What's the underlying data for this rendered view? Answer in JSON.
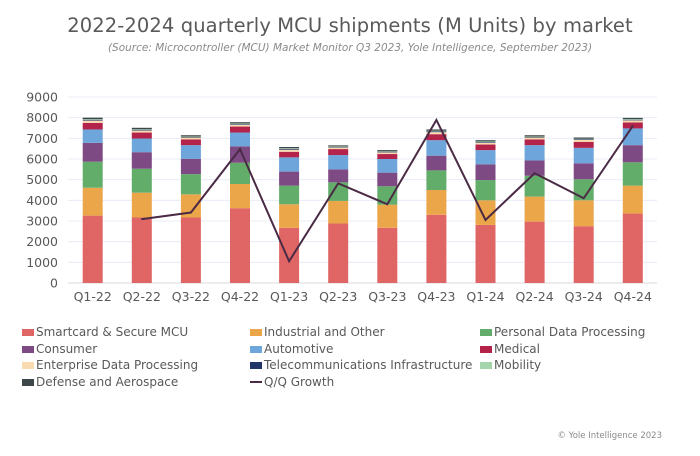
{
  "chart_data": {
    "type": "bar",
    "stacked": true,
    "title": "2022-2024 quarterly MCU shipments (M Units) by market",
    "subtitle": "(Source: Microcontroller (MCU) Market Monitor Q3 2023, Yole Intelligence, September 2023)",
    "xlabel": "",
    "ylabel": "",
    "ylim": [
      0,
      9000
    ],
    "yticks": [
      "0",
      "1000",
      "2000",
      "3000",
      "4000",
      "5000",
      "6000",
      "7000",
      "8000",
      "9000"
    ],
    "ytick_values": [
      0,
      1000,
      2000,
      3000,
      4000,
      5000,
      6000,
      7000,
      8000,
      9000
    ],
    "grid": true,
    "legend_position": "bottom",
    "categories": [
      "Q1-22",
      "Q2-22",
      "Q3-22",
      "Q4-22",
      "Q1-23",
      "Q2-23",
      "Q3-23",
      "Q4-23",
      "Q1-24",
      "Q2-24",
      "Q3-24",
      "Q4-24"
    ],
    "series": [
      {
        "name": "Smartcard & Secure MCU",
        "color": "#e06666",
        "values": [
          3260,
          3170,
          3170,
          3620,
          2670,
          2880,
          2670,
          3300,
          2810,
          2970,
          2750,
          3360
        ]
      },
      {
        "name": "Industrial and Other",
        "color": "#eca64a",
        "values": [
          1350,
          1200,
          1120,
          1170,
          1140,
          1090,
          1120,
          1200,
          1190,
          1210,
          1250,
          1350
        ]
      },
      {
        "name": "Personal Data Processing",
        "color": "#63ad6b",
        "values": [
          1260,
          1160,
          980,
          1030,
          900,
          900,
          890,
          950,
          980,
          1010,
          1020,
          1130
        ]
      },
      {
        "name": "Consumer",
        "color": "#7e4a84",
        "values": [
          910,
          800,
          740,
          790,
          680,
          630,
          660,
          710,
          760,
          740,
          770,
          830
        ]
      },
      {
        "name": "Automotive",
        "color": "#6ea6dc",
        "values": [
          650,
          660,
          660,
          670,
          690,
          690,
          660,
          750,
          690,
          740,
          750,
          810
        ]
      },
      {
        "name": "Medical",
        "color": "#b3234a",
        "values": [
          320,
          290,
          280,
          290,
          270,
          290,
          240,
          290,
          270,
          280,
          290,
          290
        ]
      },
      {
        "name": "Enterprise Data Processing",
        "color": "#f8dbb0",
        "values": [
          110,
          100,
          90,
          90,
          100,
          80,
          80,
          100,
          90,
          90,
          90,
          100
        ]
      },
      {
        "name": "Telecommunications Infrastructure",
        "color": "#22346a",
        "values": [
          40,
          40,
          30,
          30,
          40,
          30,
          30,
          40,
          30,
          30,
          30,
          30
        ]
      },
      {
        "name": "Mobility",
        "color": "#a4d4ac",
        "values": [
          30,
          30,
          20,
          30,
          30,
          20,
          20,
          30,
          30,
          20,
          30,
          30
        ]
      },
      {
        "name": "Defense and Aerospace",
        "color": "#3d4649",
        "values": [
          70,
          60,
          60,
          60,
          60,
          50,
          60,
          60,
          60,
          60,
          60,
          60
        ]
      }
    ],
    "line_series": {
      "name": "Q/Q Growth",
      "color": "#4a2a45",
      "values": [
        null,
        3090,
        3410,
        6480,
        1050,
        4820,
        3810,
        7890,
        3050,
        5310,
        4100,
        7600
      ]
    }
  },
  "copyright": "© Yole Intelligence 2023"
}
